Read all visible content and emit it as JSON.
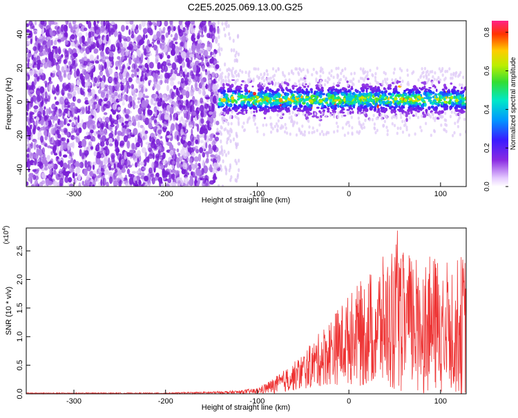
{
  "figure": {
    "title": "C2E5.2025.069.13.00.G25"
  },
  "chart_data": [
    {
      "type": "heatmap",
      "xlabel": "Height of straight line (km)",
      "ylabel": "Frequency (Hz)",
      "xlim": [
        -352,
        128
      ],
      "ylim": [
        -50,
        48
      ],
      "x_ticks": [
        -300,
        -200,
        -100,
        0,
        100
      ],
      "y_ticks": [
        -40,
        -20,
        0,
        20,
        40
      ],
      "colorbar": {
        "label": "Normalized spectral amplitude",
        "range": [
          0.0,
          0.86
        ],
        "ticks": [
          0.0,
          0.2,
          0.4,
          0.6,
          0.8
        ]
      },
      "description_regions": [
        {
          "x_range": [
            -352,
            -142
          ],
          "y_range": [
            -50,
            48
          ],
          "amplitude_level": 0.1
        },
        {
          "x_range": [
            -142,
            128
          ],
          "y_range": [
            -8,
            12
          ],
          "amplitude_level": 0.45
        }
      ]
    },
    {
      "type": "line",
      "xlabel": "Height of straight line (km)",
      "ylabel": "SNR (10 * v/v)",
      "scale_label": "(x10",
      "scale_exponent": "4",
      "xlim": [
        -352,
        128
      ],
      "ylim": [
        0,
        2.9
      ],
      "x_ticks": [
        -300,
        -200,
        -100,
        0,
        100
      ],
      "y_ticks": [
        0.0,
        0.5,
        1.0,
        1.5,
        2.0,
        2.5
      ],
      "series": [
        {
          "color": "#ee3333",
          "envelope": {
            "x": [
              -352,
              -200,
              -150,
              -120,
              -100,
              -80,
              -60,
              -40,
              -20,
              0,
              20,
              40,
              60,
              80,
              100,
              128
            ],
            "mean": [
              0.01,
              0.01,
              0.02,
              0.03,
              0.05,
              0.15,
              0.3,
              0.5,
              0.75,
              0.95,
              1.1,
              1.25,
              1.25,
              1.2,
              1.2,
              1.2
            ],
            "amplitude": [
              0.01,
              0.01,
              0.02,
              0.03,
              0.05,
              0.15,
              0.25,
              0.4,
              0.6,
              0.8,
              1.0,
              1.2,
              1.25,
              1.2,
              1.2,
              1.25
            ]
          }
        }
      ]
    }
  ]
}
